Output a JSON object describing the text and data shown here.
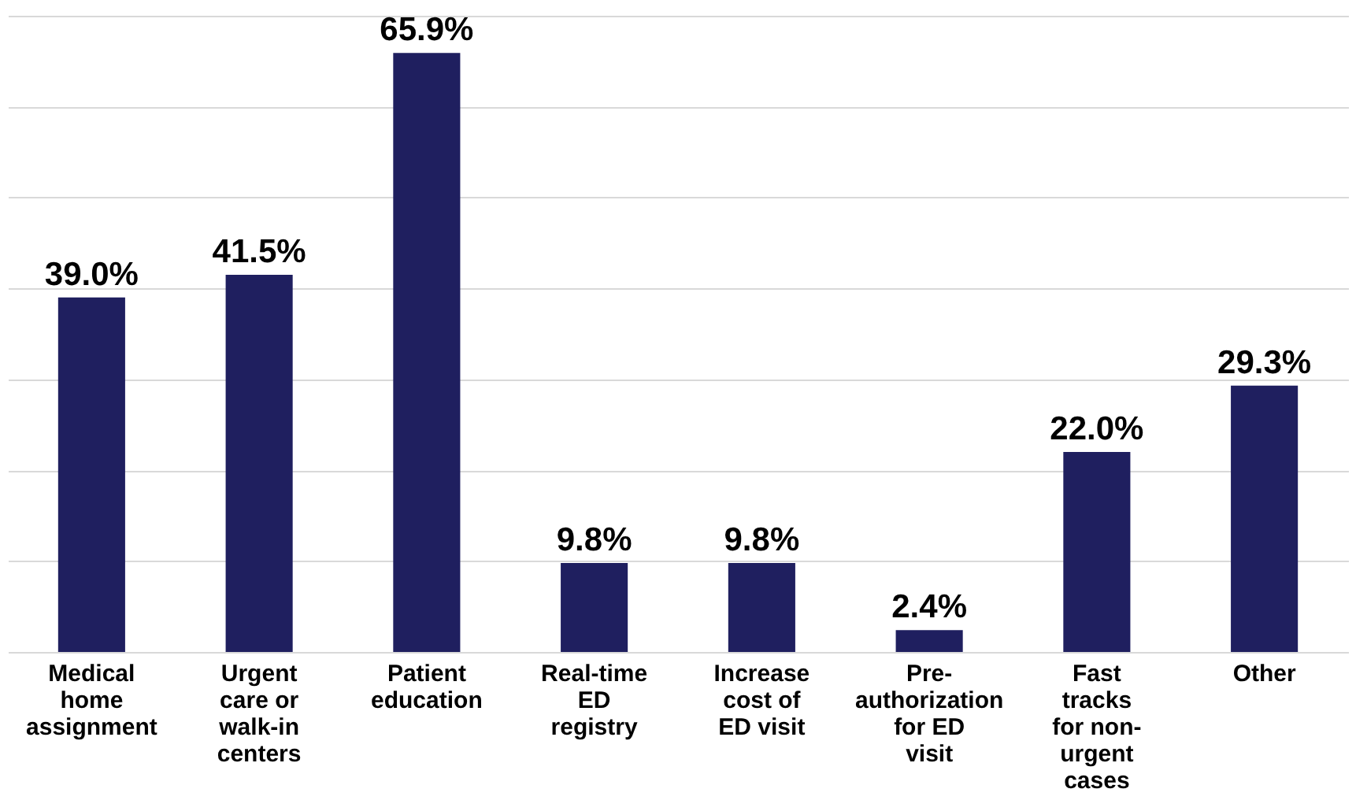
{
  "chart_data": {
    "type": "bar",
    "categories": [
      "Medical home assignment",
      "Urgent care or walk-in centers",
      "Patient education",
      "Real-time ED registry",
      "Increase cost of ED visit",
      "Pre-authorization for ED visit",
      "Fast tracks for non-urgent cases",
      "Other"
    ],
    "values": [
      39.0,
      41.5,
      65.9,
      9.8,
      9.8,
      2.4,
      22.0,
      29.3
    ],
    "value_labels": [
      "39.0%",
      "41.5%",
      "65.9%",
      "9.8%",
      "9.8%",
      "2.4%",
      "22.0%",
      "29.3%"
    ],
    "color": "#1f1f5f",
    "ylim": [
      0,
      70
    ],
    "yticks": [
      {
        "value": 0,
        "label": null
      },
      {
        "value": 10,
        "label": null
      },
      {
        "value": 20,
        "label": null
      },
      {
        "value": 30,
        "label": null
      },
      {
        "value": 40,
        "label": null
      },
      {
        "value": 50,
        "label": null
      },
      {
        "value": 60,
        "label": null
      },
      {
        "value": 70,
        "label": null
      }
    ],
    "grid": "y",
    "tick_labels": "x"
  }
}
